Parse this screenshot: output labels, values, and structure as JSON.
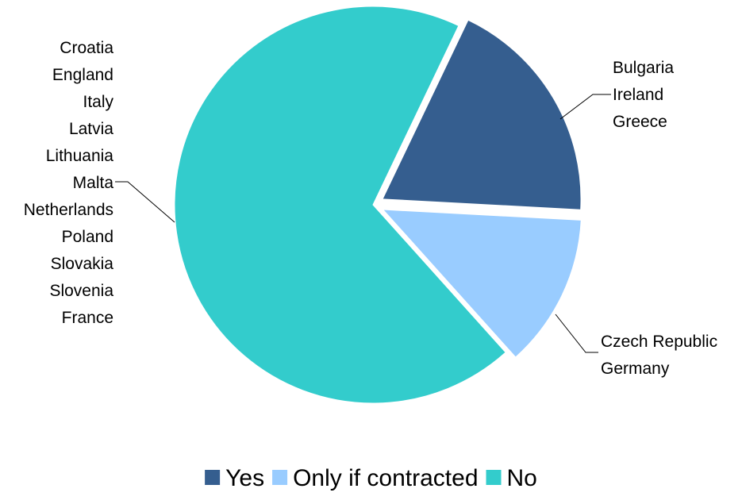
{
  "chart_data": {
    "type": "pie",
    "series": [
      {
        "name": "Yes",
        "value": 3,
        "color": "#355E8F",
        "countries": [
          "Bulgaria",
          "Ireland",
          "Greece"
        ]
      },
      {
        "name": "Only if contracted",
        "value": 2,
        "color": "#99CCFF",
        "countries": [
          "Czech Republic",
          "Germany"
        ]
      },
      {
        "name": "No",
        "value": 11,
        "color": "#33CCCC",
        "countries": [
          "Croatia",
          "England",
          "Italy",
          "Latvia",
          "Lithuania",
          "Malta",
          "Netherlands",
          "Poland",
          "Slovakia",
          "Slovenia",
          "France"
        ]
      }
    ],
    "legend": "bottom"
  }
}
